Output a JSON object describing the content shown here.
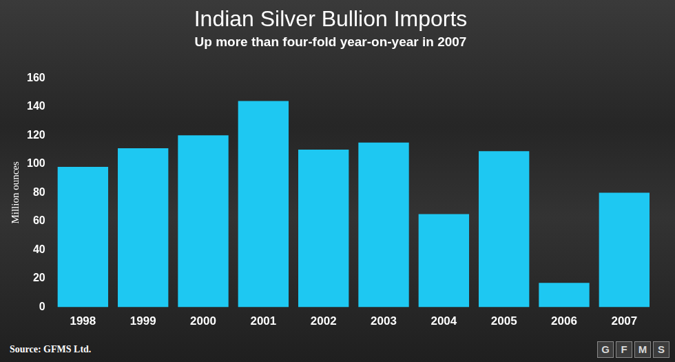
{
  "chart_data": {
    "type": "bar",
    "title": "Indian Silver Bullion Imports",
    "subtitle": "Up more than four-fold year-on-year in 2007",
    "y_label": "Million ounces",
    "categories": [
      "1998",
      "1999",
      "2000",
      "2001",
      "2002",
      "2003",
      "2004",
      "2005",
      "2006",
      "2007"
    ],
    "values": [
      98,
      111,
      120,
      144,
      110,
      115,
      65,
      109,
      17,
      80
    ],
    "color": "#1ec8f2",
    "ylim": [
      0,
      160
    ],
    "yticks": [
      0,
      20,
      40,
      60,
      80,
      100,
      120,
      140,
      160
    ],
    "grid": false,
    "source": "Source: GFMS Ltd.",
    "logo": "GFMS"
  }
}
